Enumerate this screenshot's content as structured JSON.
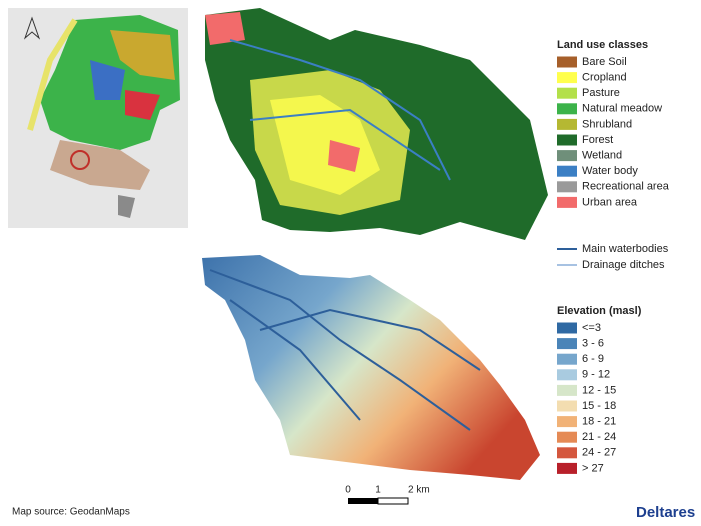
{
  "land_use": {
    "title": "Land use classes",
    "classes": [
      {
        "label": "Bare Soil",
        "color": "#a65f2a"
      },
      {
        "label": "Cropland",
        "color": "#ffff4d"
      },
      {
        "label": "Pasture",
        "color": "#b3e04a"
      },
      {
        "label": "Natural meadow",
        "color": "#3cb34a"
      },
      {
        "label": "Shrubland",
        "color": "#b5b832"
      },
      {
        "label": "Forest",
        "color": "#1f6b2a"
      },
      {
        "label": "Wetland",
        "color": "#6f8f7a"
      },
      {
        "label": "Water body",
        "color": "#3b7fc4"
      },
      {
        "label": "Recreational area",
        "color": "#9a9a9a"
      },
      {
        "label": "Urban area",
        "color": "#f26b6b"
      }
    ]
  },
  "waterways": [
    {
      "label": "Main waterbodies",
      "color": "#2d5f9a",
      "width": 2
    },
    {
      "label": "Drainage ditches",
      "color": "#4f86c6",
      "width": 1
    }
  ],
  "elevation": {
    "title": "Elevation (masl)",
    "classes": [
      {
        "label": "<=3",
        "color": "#2f69a3"
      },
      {
        "label": "3 - 6",
        "color": "#4a84b8"
      },
      {
        "label": "6 - 9",
        "color": "#76a6cc"
      },
      {
        "label": "9 - 12",
        "color": "#a9cbe0"
      },
      {
        "label": "12 - 15",
        "color": "#d6e6c9"
      },
      {
        "label": "15 - 18",
        "color": "#f3ddb0"
      },
      {
        "label": "18 - 21",
        "color": "#f1b277"
      },
      {
        "label": "21 - 24",
        "color": "#e58a55"
      },
      {
        "label": "24 - 27",
        "color": "#d4573e"
      },
      {
        "label": "> 27",
        "color": "#b8202a"
      }
    ]
  },
  "scale_bar": {
    "ticks": [
      "0",
      "1",
      "2 km"
    ]
  },
  "source": "Map source: GeodanMaps",
  "logo": "Deltares"
}
